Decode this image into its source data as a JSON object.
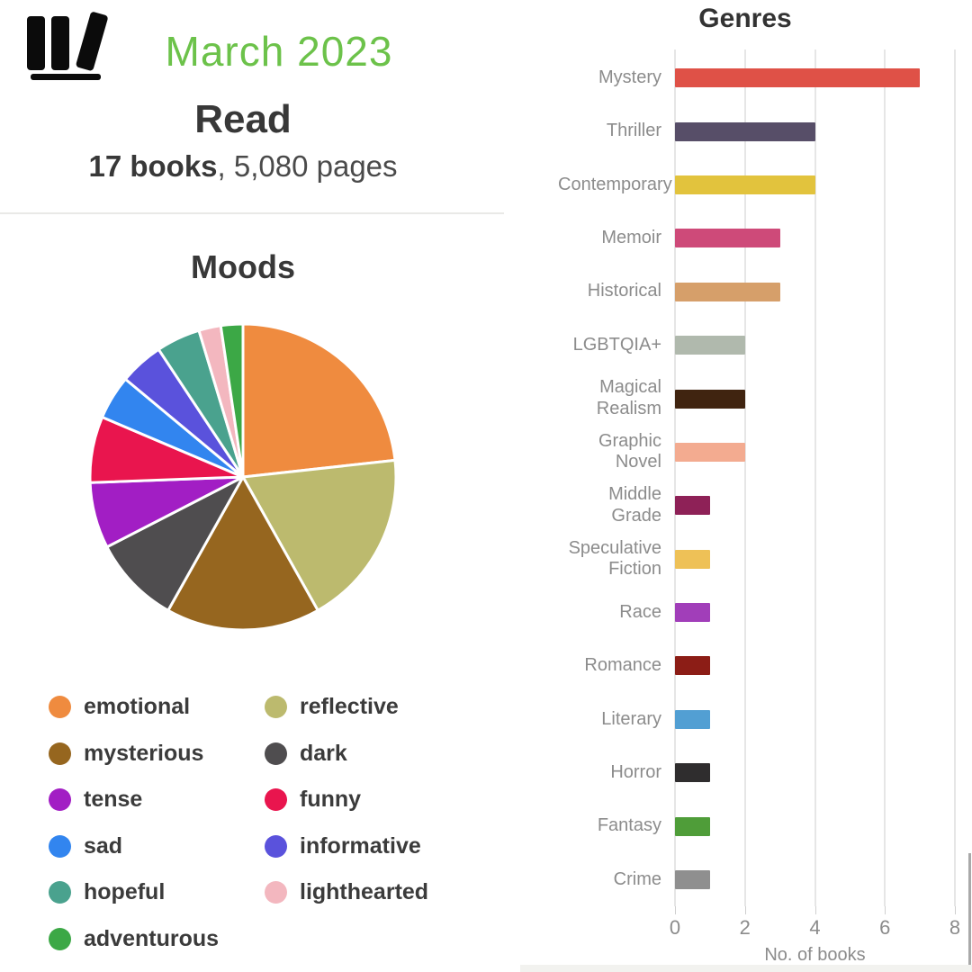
{
  "header": {
    "logo_icon": "book-spines-on-shelf",
    "month_title": "March 2023",
    "month_color": "#6cc24a"
  },
  "read": {
    "heading": "Read",
    "stats_bold": "17 books",
    "stats_rest": ", 5,080 pages"
  },
  "chart_data": [
    {
      "type": "pie",
      "title": "Moods",
      "labels": [
        "emotional",
        "reflective",
        "mysterious",
        "dark",
        "tense",
        "funny",
        "sad",
        "informative",
        "hopeful",
        "lighthearted",
        "adventurous"
      ],
      "values": [
        10,
        8,
        7,
        4,
        3,
        3,
        2,
        2,
        2,
        1,
        1
      ],
      "values_note": "relative weights estimated from slice angles; no numeric labels shown",
      "colors": [
        "#ef8b3f",
        "#bcba6e",
        "#96661f",
        "#4f4d4f",
        "#a21ec4",
        "#e9154e",
        "#3285ef",
        "#5a52dc",
        "#4aa28e",
        "#f3b7bf",
        "#3ca846"
      ],
      "start_angle_deg": 0,
      "direction": "clockwise",
      "slice_border_color": "#ffffff",
      "legend_position": "below, two columns"
    },
    {
      "type": "bar",
      "title": "Genres",
      "orientation": "horizontal",
      "categories": [
        "Mystery",
        "Thriller",
        "Contemporary",
        "Memoir",
        "Historical",
        "LGBTQIA+",
        "Magical Realism",
        "Graphic Novel",
        "Middle Grade",
        "Speculative Fiction",
        "Race",
        "Romance",
        "Literary",
        "Horror",
        "Fantasy",
        "Crime"
      ],
      "values": [
        7,
        4,
        4,
        3,
        3,
        2,
        2,
        2,
        1,
        1,
        1,
        1,
        1,
        1,
        1,
        1
      ],
      "colors": [
        "#df5147",
        "#574e68",
        "#e2c33d",
        "#ce4a79",
        "#d69f6a",
        "#b0b9ad",
        "#402410",
        "#f3ab90",
        "#8e2157",
        "#eec157",
        "#a13eb9",
        "#8c1d16",
        "#529fd3",
        "#2f2d2e",
        "#4f9d39",
        "#8f8f8f"
      ],
      "xlabel": "No. of books",
      "x_ticks": [
        0,
        2,
        4,
        6,
        8
      ],
      "xlim": [
        0,
        8
      ],
      "grid": "vertical gridlines at each tick",
      "label_color": "#8c8c8c"
    }
  ]
}
